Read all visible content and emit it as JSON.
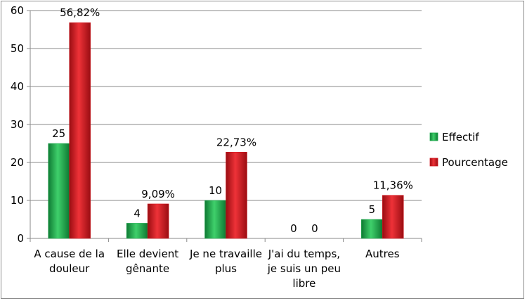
{
  "chart_data": {
    "type": "bar",
    "categories": [
      [
        "A cause de la",
        "douleur"
      ],
      [
        "Elle devient",
        "gênante"
      ],
      [
        "Je ne travaille",
        "plus"
      ],
      [
        "J'ai du temps,",
        "je suis un peu",
        "libre"
      ],
      [
        "Autres"
      ]
    ],
    "series": [
      {
        "name": "Effectif",
        "values": [
          25,
          4,
          10,
          0,
          5
        ],
        "labels": [
          "25",
          "4",
          "10",
          "0",
          "5"
        ],
        "color": "#1aa84a"
      },
      {
        "name": "Pourcentage",
        "values": [
          56.82,
          9.09,
          22.73,
          0,
          11.36
        ],
        "labels": [
          "56,82%",
          "9,09%",
          "22,73%",
          "0",
          "11,36%"
        ],
        "color": "#d4141c"
      }
    ],
    "ylim": [
      0,
      60
    ],
    "yticks": [
      0,
      10,
      20,
      30,
      40,
      50,
      60
    ],
    "grid": true,
    "legend_position": "right",
    "title": "",
    "xlabel": "",
    "ylabel": ""
  }
}
